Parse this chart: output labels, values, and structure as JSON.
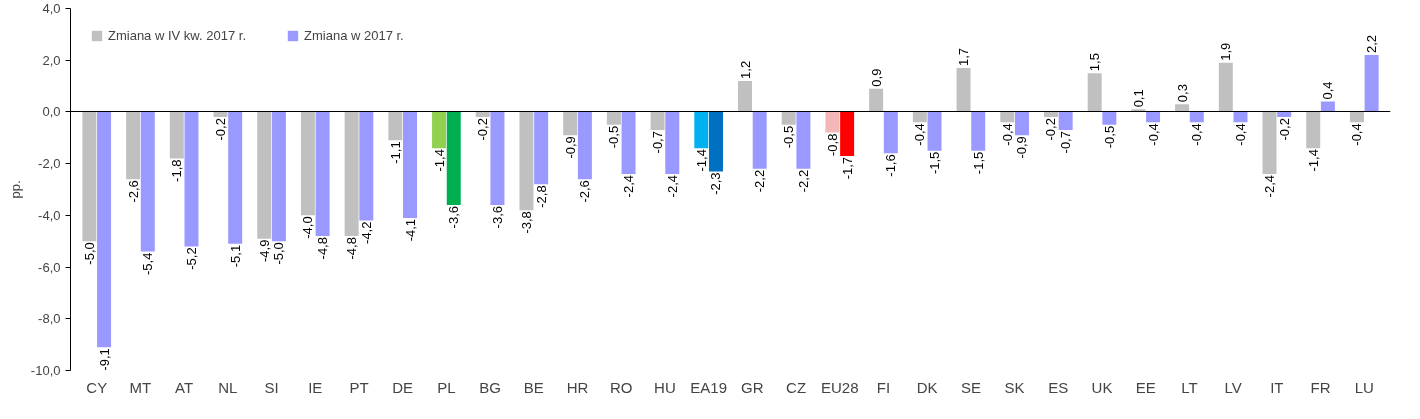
{
  "chart_data": {
    "type": "bar",
    "ylabel": "pp.",
    "categories": [
      "CY",
      "MT",
      "AT",
      "NL",
      "SI",
      "IE",
      "PT",
      "DE",
      "PL",
      "BG",
      "BE",
      "HR",
      "RO",
      "HU",
      "EA19",
      "GR",
      "CZ",
      "EU28",
      "FI",
      "DK",
      "SE",
      "SK",
      "ES",
      "UK",
      "EE",
      "LT",
      "LV",
      "IT",
      "FR",
      "LU"
    ],
    "series": [
      {
        "name": "Zmiana w IV kw. 2017 r.",
        "color": "#c0c0c0",
        "colors": [
          "#c0c0c0",
          "#c0c0c0",
          "#c0c0c0",
          "#c0c0c0",
          "#c0c0c0",
          "#c0c0c0",
          "#c0c0c0",
          "#c0c0c0",
          "#92d050",
          "#c0c0c0",
          "#c0c0c0",
          "#c0c0c0",
          "#c0c0c0",
          "#c0c0c0",
          "#00b0f0",
          "#c0c0c0",
          "#c0c0c0",
          "#f4b6b6",
          "#c0c0c0",
          "#c0c0c0",
          "#c0c0c0",
          "#c0c0c0",
          "#c0c0c0",
          "#c0c0c0",
          "#c0c0c0",
          "#c0c0c0",
          "#c0c0c0",
          "#c0c0c0",
          "#c0c0c0",
          "#c0c0c0"
        ],
        "values": [
          -5.0,
          -2.6,
          -1.8,
          -0.2,
          -4.9,
          -4.0,
          -4.8,
          -1.1,
          -1.4,
          -0.2,
          -3.8,
          -0.9,
          -0.5,
          -0.7,
          -1.4,
          1.2,
          -0.5,
          -0.8,
          0.9,
          -0.4,
          1.7,
          -0.4,
          -0.2,
          1.5,
          0.1,
          0.3,
          1.9,
          -2.4,
          -1.4,
          -0.4
        ],
        "value_labels": [
          "-5,0",
          "-2,6",
          "-1,8",
          "-0,2",
          "-4,9",
          "-4,0",
          "-4,8",
          "-1,1",
          "-1,4",
          "-0,2",
          "-3,8",
          "-0,9",
          "-0,5",
          "-0,7",
          "-1,4",
          "1,2",
          "-0,5",
          "-0,8",
          "0,9",
          "-0,4",
          "1,7",
          "-0,4",
          "-0,2",
          "1,5",
          "0,1",
          "0,3",
          "1,9",
          "-2,4",
          "-1,4",
          "-0,4"
        ]
      },
      {
        "name": "Zmiana w 2017 r.",
        "color": "#9999ff",
        "colors": [
          "#9999ff",
          "#9999ff",
          "#9999ff",
          "#9999ff",
          "#9999ff",
          "#9999ff",
          "#9999ff",
          "#9999ff",
          "#00b050",
          "#9999ff",
          "#9999ff",
          "#9999ff",
          "#9999ff",
          "#9999ff",
          "#0070c0",
          "#9999ff",
          "#9999ff",
          "#ff0000",
          "#9999ff",
          "#9999ff",
          "#9999ff",
          "#9999ff",
          "#9999ff",
          "#9999ff",
          "#9999ff",
          "#9999ff",
          "#9999ff",
          "#9999ff",
          "#9999ff",
          "#9999ff"
        ],
        "values": [
          -9.1,
          -5.4,
          -5.2,
          -5.1,
          -5.0,
          -4.8,
          -4.2,
          -4.1,
          -3.6,
          -3.6,
          -2.8,
          -2.6,
          -2.4,
          -2.4,
          -2.3,
          -2.2,
          -2.2,
          -1.7,
          -1.6,
          -1.5,
          -1.5,
          -0.9,
          -0.7,
          -0.5,
          -0.4,
          -0.4,
          -0.4,
          -0.2,
          0.4,
          2.2
        ],
        "value_labels": [
          "-9,1",
          "-5,4",
          "-5,2",
          "-5,1",
          "-5,0",
          "-4,8",
          "-4,2",
          "-4,1",
          "-3,6",
          "-3,6",
          "-2,8",
          "-2,6",
          "-2,4",
          "-2,4",
          "-2,3",
          "-2,2",
          "-2,2",
          "-1,7",
          "-1,6",
          "-1,5",
          "-1,5",
          "-0,9",
          "-0,7",
          "-0,5",
          "-0,4",
          "-0,4",
          "-0,4",
          "-0,2",
          "0,4",
          "2,2"
        ]
      }
    ],
    "ylim": [
      -10,
      4
    ],
    "yticks": [
      {
        "value": -10,
        "label": "-10,0"
      },
      {
        "value": -8,
        "label": "-8,0"
      },
      {
        "value": -6,
        "label": "-6,0"
      },
      {
        "value": -4,
        "label": "-4,0"
      },
      {
        "value": -2,
        "label": "-2,0"
      },
      {
        "value": 0,
        "label": "0,0"
      },
      {
        "value": 2,
        "label": "2,0"
      },
      {
        "value": 4,
        "label": "4,0"
      }
    ],
    "data_labels": true,
    "legend": "top left"
  }
}
